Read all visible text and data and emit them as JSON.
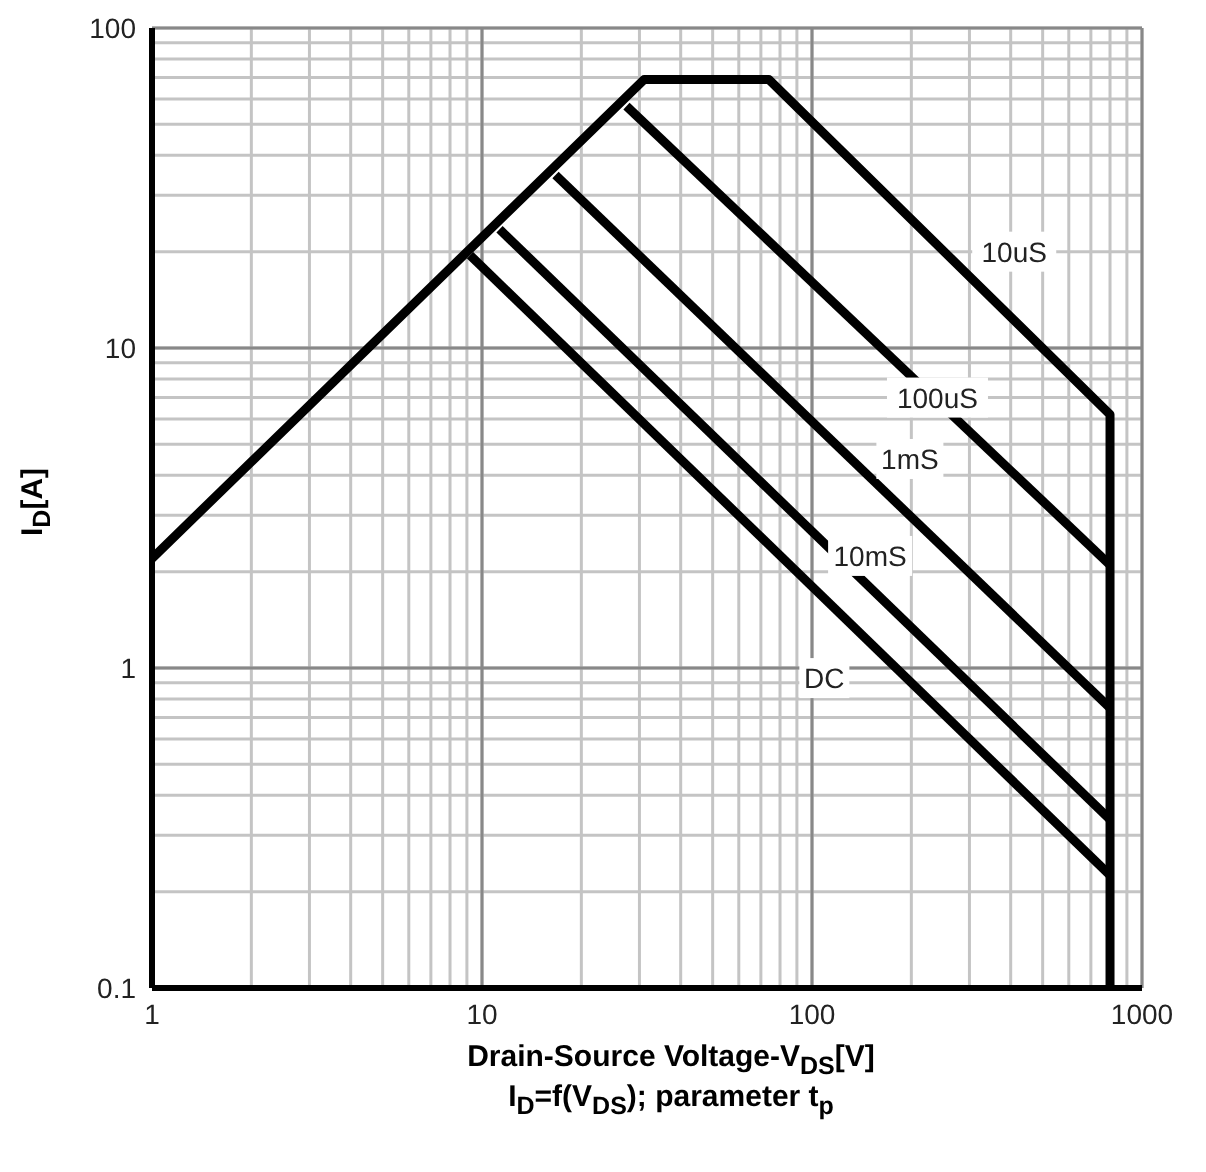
{
  "chart_data": {
    "type": "line",
    "xlabel": "Drain-Source Voltage-V$_{DS}$[V]",
    "ylabel": "I$_{D}$[A]",
    "log": "xy",
    "grid": true,
    "marker": "none",
    "line_style": "solid",
    "xlim": [
      1,
      1000
    ],
    "xticks": [
      1,
      10,
      100,
      1000
    ],
    "ylim": [
      0.1,
      100
    ],
    "yticks": [
      0.1,
      1,
      10,
      100
    ],
    "series": [
      {
        "color": "#000000",
        "x": [
          1,
          31,
          74,
          800,
          800
        ],
        "values": [
          2.2,
          69,
          69,
          6.2,
          0.1
        ]
      },
      {
        "color": "#000000",
        "x": [
          27.4,
          800
        ],
        "values": [
          57,
          2.1
        ]
      },
      {
        "color": "#000000",
        "x": [
          16.7,
          800
        ],
        "values": [
          34.7,
          0.75
        ]
      },
      {
        "color": "#000000",
        "x": [
          11.3,
          800
        ],
        "values": [
          23.5,
          0.336
        ]
      },
      {
        "color": "#000000",
        "x": [
          9.2,
          800
        ],
        "values": [
          19.5,
          0.225
        ]
      }
    ],
    "annotations": [
      {
        "text": "10uS",
        "x": 410,
        "y": 20
      },
      {
        "text": "100uS",
        "x": 240,
        "y": 7
      },
      {
        "text": "1mS",
        "x": 198,
        "y": 4.5
      },
      {
        "text": "10mS",
        "x": 150,
        "y": 2.24
      },
      {
        "text": "DC",
        "x": 109,
        "y": 0.93
      },
      "I$_{D}$=f(V$_{DS}$); parameter t$_{p}$"
    ]
  }
}
